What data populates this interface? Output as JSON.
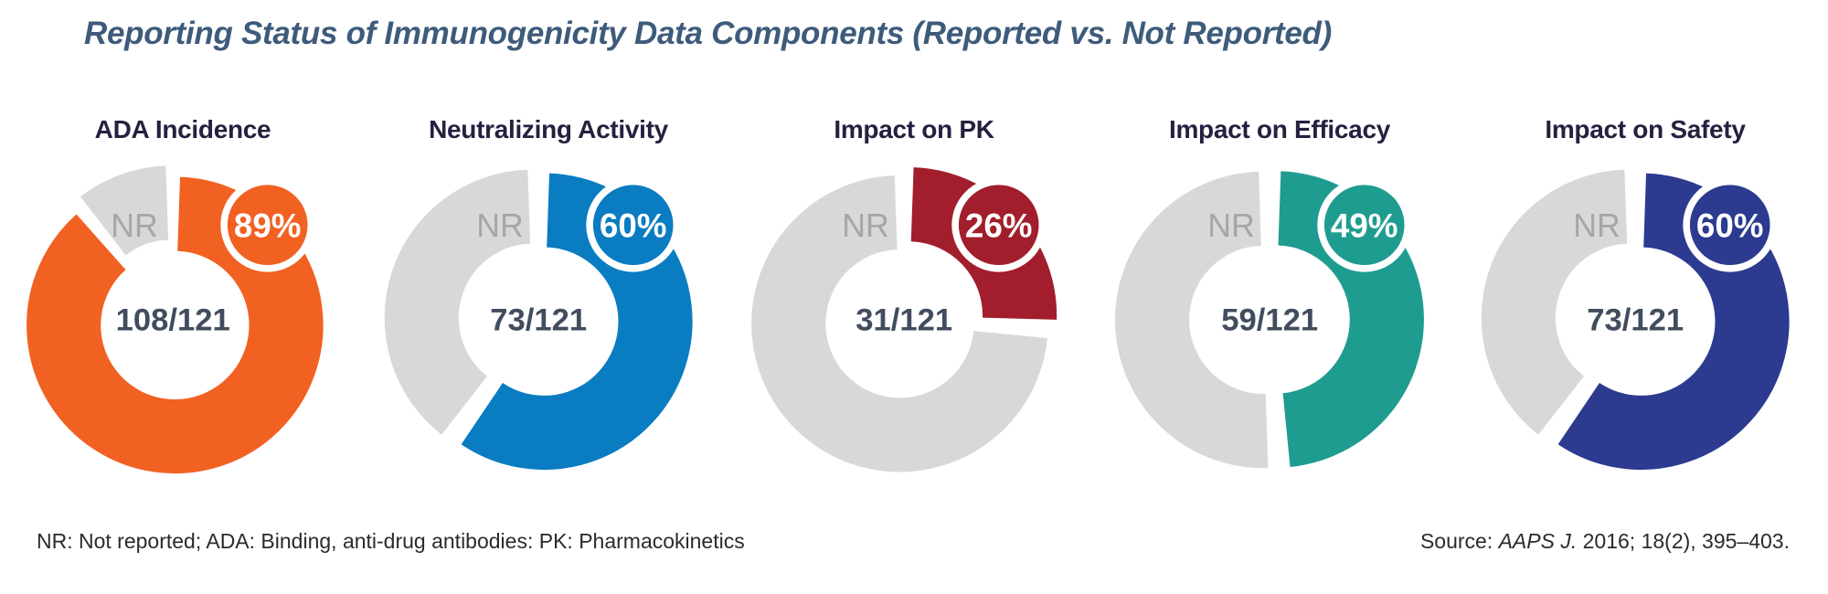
{
  "title": "Reporting Status of Immunogenicity Data Components (Reported vs. Not Reported)",
  "chart_data": [
    {
      "type": "pie",
      "title": "ADA Incidence",
      "categories": [
        "Reported",
        "Not reported (NR)"
      ],
      "values": [
        89,
        11
      ],
      "reported_count": 108,
      "total_count": 121,
      "center_label": "108/121",
      "percent_label": "89%",
      "nr_label": "NR",
      "color": "#F16122"
    },
    {
      "type": "pie",
      "title": "Neutralizing Activity",
      "categories": [
        "Reported",
        "Not reported (NR)"
      ],
      "values": [
        60,
        40
      ],
      "reported_count": 73,
      "total_count": 121,
      "center_label": "73/121",
      "percent_label": "60%",
      "nr_label": "NR",
      "color": "#0A7CC2"
    },
    {
      "type": "pie",
      "title": "Impact on PK",
      "categories": [
        "Reported",
        "Not reported (NR)"
      ],
      "values": [
        26,
        74
      ],
      "reported_count": 31,
      "total_count": 121,
      "center_label": "31/121",
      "percent_label": "26%",
      "nr_label": "NR",
      "color": "#A21E2C"
    },
    {
      "type": "pie",
      "title": "Impact on Efficacy",
      "categories": [
        "Reported",
        "Not reported (NR)"
      ],
      "values": [
        49,
        51
      ],
      "reported_count": 59,
      "total_count": 121,
      "center_label": "59/121",
      "percent_label": "49%",
      "nr_label": "NR",
      "color": "#1F9C90"
    },
    {
      "type": "pie",
      "title": "Impact on Safety",
      "categories": [
        "Reported",
        "Not reported (NR)"
      ],
      "values": [
        60,
        40
      ],
      "reported_count": 73,
      "total_count": 121,
      "center_label": "73/121",
      "percent_label": "60%",
      "nr_label": "NR",
      "color": "#2C3A8F"
    }
  ],
  "footnotes": {
    "abbreviations": "NR: Not reported; ADA: Binding, anti-drug antibodies: PK: Pharmacokinetics",
    "source_prefix": "Source: ",
    "source_journal": "AAPS J.",
    "source_rest": " 2016; 18(2), 395–403."
  },
  "colors": {
    "not_reported_gray": "#D8D8D9",
    "nr_text_gray": "#A6A6A8",
    "count_text": "#414C5E",
    "panel_title": "#262040",
    "figure_title": "#3E5B7B",
    "badge_ring_white": "#FFFFFF"
  }
}
